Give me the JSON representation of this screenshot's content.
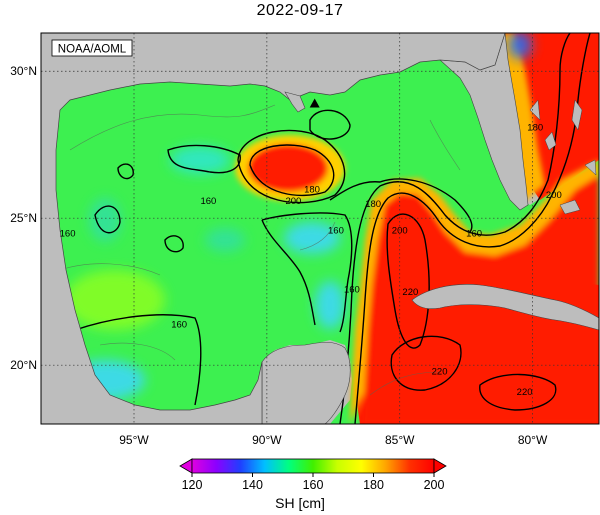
{
  "title": "2022-09-17",
  "credit": "NOAA/AOML",
  "lon_ticks": [
    {
      "label": "95°W",
      "lon": -95
    },
    {
      "label": "90°W",
      "lon": -90
    },
    {
      "label": "85°W",
      "lon": -85
    },
    {
      "label": "80°W",
      "lon": -80
    }
  ],
  "lat_ticks": [
    {
      "label": "30°N",
      "lat": 30
    },
    {
      "label": "25°N",
      "lat": 25
    },
    {
      "label": "20°N",
      "lat": 20
    }
  ],
  "extent": {
    "lon_min": -98.5,
    "lon_max": -77.5,
    "lat_min": 18,
    "lat_max": 31.3
  },
  "contour_labels": [
    {
      "text": "180",
      "lon": -79.9,
      "lat": 28.1
    },
    {
      "text": "200",
      "lon": -79.2,
      "lat": 25.8
    },
    {
      "text": "180",
      "lon": -88.3,
      "lat": 26.0
    },
    {
      "text": "200",
      "lon": -89.0,
      "lat": 25.6
    },
    {
      "text": "180",
      "lon": -86.0,
      "lat": 25.5
    },
    {
      "text": "160",
      "lon": -92.2,
      "lat": 25.6
    },
    {
      "text": "160",
      "lon": -97.5,
      "lat": 24.5
    },
    {
      "text": "160",
      "lon": -87.4,
      "lat": 24.6
    },
    {
      "text": "160",
      "lon": -82.2,
      "lat": 24.5
    },
    {
      "text": "200",
      "lon": -85.0,
      "lat": 24.6
    },
    {
      "text": "160",
      "lon": -86.8,
      "lat": 22.6
    },
    {
      "text": "220",
      "lon": -84.6,
      "lat": 22.5
    },
    {
      "text": "160",
      "lon": -93.3,
      "lat": 21.4
    },
    {
      "text": "220",
      "lon": -83.5,
      "lat": 19.8
    },
    {
      "text": "220",
      "lon": -80.3,
      "lat": 19.1
    }
  ],
  "marker": {
    "type": "triangle",
    "lon": -88.2,
    "lat": 28.9
  },
  "colorbar": {
    "label": "SH [cm]",
    "min": 120,
    "max": 200,
    "ticks": [
      "120",
      "140",
      "160",
      "180",
      "200"
    ],
    "colors": [
      "#e000e0",
      "#8c00ff",
      "#1f3fff",
      "#00bfff",
      "#00ff80",
      "#40f000",
      "#c8ff00",
      "#ffff00",
      "#ffa500",
      "#ff3000",
      "#ff0000"
    ]
  },
  "colors": {
    "land": "#bdbdbd",
    "coast": "#444444",
    "gulf_base": "#3df050",
    "warm": "#ff1a00",
    "front_yellow": "#ffe600",
    "front_orange": "#ff8a00",
    "cool": "#3cd7ff"
  }
}
